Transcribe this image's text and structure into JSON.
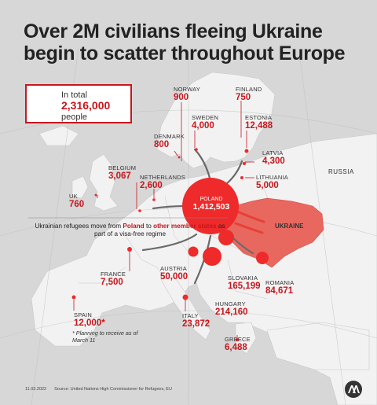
{
  "title": "Over 2M civilians fleeing Ukraine begin to scatter throughout Europe",
  "legend": {
    "prefix": "In total",
    "total": "2,316,000",
    "unit": "people"
  },
  "map_labels": {
    "ukraine": "UKRAINE",
    "russia": "RUSSIA"
  },
  "note": {
    "part1": "Ukrainian refugees move from ",
    "poland": "Poland",
    "part2": " to ",
    "other": "other member states",
    "part3": " as part of a visa-free regime"
  },
  "planning_note": "* Planning to receive as of March 11",
  "footer": {
    "date": "11.03.2022",
    "source": "Source: United Nations High Commissioner for Refugees, EU"
  },
  "countries": {
    "poland": {
      "name": "POLAND",
      "value": "1,412,503"
    },
    "norway": {
      "name": "NORWAY",
      "value": "900"
    },
    "finland": {
      "name": "FINLAND",
      "value": "750"
    },
    "sweden": {
      "name": "SWEDEN",
      "value": "4,000"
    },
    "estonia": {
      "name": "ESTONIA",
      "value": "12,488"
    },
    "denmark": {
      "name": "DENMARK",
      "value": "800"
    },
    "latvia": {
      "name": "LATVIA",
      "value": "4,300"
    },
    "belgium": {
      "name": "BELGIUM",
      "value": "3,067"
    },
    "netherlands": {
      "name": "NETHERLANDS",
      "value": "2,600"
    },
    "lithuania": {
      "name": "LITHUANIA",
      "value": "5,000"
    },
    "uk": {
      "name": "UK",
      "value": "760"
    },
    "france": {
      "name": "FRANCE",
      "value": "7,500"
    },
    "austria": {
      "name": "AUSTRIA",
      "value": "50,000"
    },
    "slovakia": {
      "name": "SLOVAKIA",
      "value": "165,199"
    },
    "romania": {
      "name": "ROMANIA",
      "value": "84,671"
    },
    "hungary": {
      "name": "HUNGARY",
      "value": "214,160"
    },
    "spain": {
      "name": "SPAIN",
      "value": "12,000",
      "flag": "*"
    },
    "italy": {
      "name": "ITALY",
      "value": "23,872"
    },
    "greece": {
      "name": "GREECE",
      "value": "6,488"
    }
  },
  "colors": {
    "accent": "#c8161d",
    "ukraine": "#e8685f",
    "bubble": "#ee2a2a",
    "land": "#f1f1f1",
    "sea": "#d7d7d7"
  }
}
